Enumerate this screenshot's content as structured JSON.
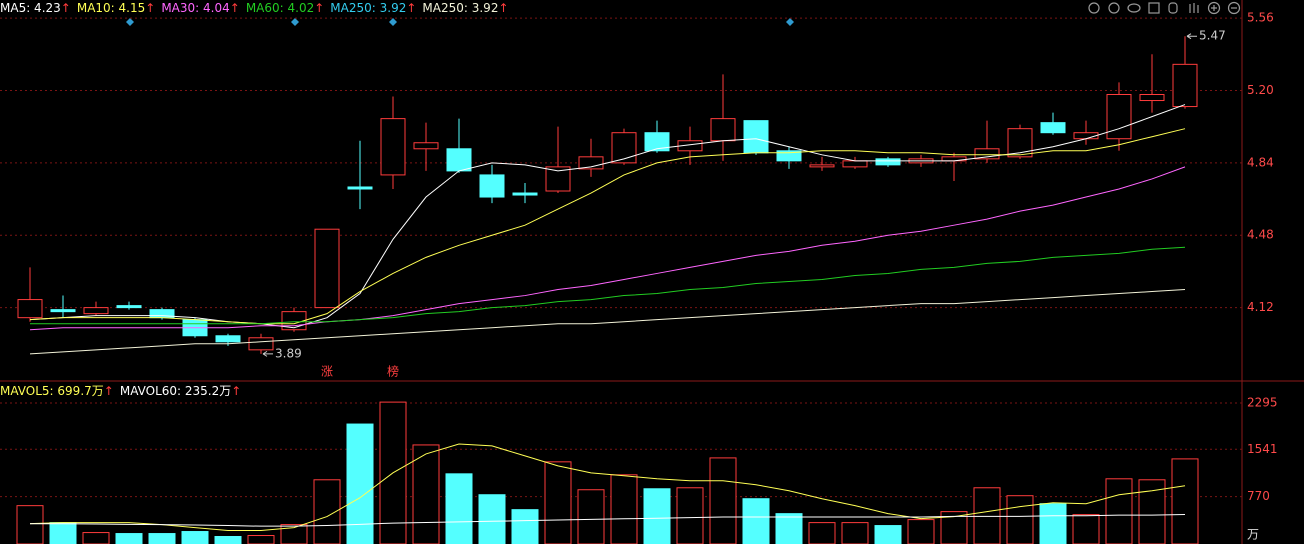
{
  "chart_data": [
    {
      "type": "candlestick",
      "open": [
        4.07,
        4.11,
        4.09,
        4.13,
        4.11,
        4.06,
        3.98,
        3.91,
        4.01,
        4.12,
        4.72,
        4.78,
        4.91,
        4.91,
        4.78,
        4.69,
        4.7,
        4.81,
        4.84,
        4.99,
        4.9,
        4.95,
        5.05,
        4.9,
        4.82,
        4.82,
        4.86,
        4.84,
        4.85,
        4.86,
        4.87,
        5.04,
        4.96,
        4.96,
        5.15,
        5.12
      ],
      "high": [
        4.32,
        4.18,
        4.15,
        4.15,
        4.12,
        4.07,
        3.99,
        3.99,
        4.12,
        4.51,
        4.95,
        5.17,
        5.04,
        5.06,
        4.83,
        4.74,
        5.02,
        4.96,
        5.01,
        5.05,
        5.02,
        5.28,
        5.05,
        4.92,
        4.87,
        4.87,
        4.87,
        4.88,
        4.89,
        5.05,
        5.03,
        5.09,
        5.05,
        5.24,
        5.38,
        5.47
      ],
      "low": [
        4.05,
        4.07,
        4.08,
        4.11,
        4.06,
        3.97,
        3.93,
        3.89,
        4.0,
        4.12,
        4.61,
        4.71,
        4.8,
        4.79,
        4.64,
        4.64,
        4.69,
        4.77,
        4.83,
        4.89,
        4.83,
        4.85,
        4.88,
        4.81,
        4.8,
        4.81,
        4.82,
        4.82,
        4.75,
        4.84,
        4.86,
        4.98,
        4.93,
        4.9,
        5.09,
        5.11
      ],
      "close": [
        4.16,
        4.1,
        4.12,
        4.12,
        4.07,
        3.98,
        3.95,
        3.97,
        4.1,
        4.51,
        4.71,
        5.06,
        4.94,
        4.8,
        4.67,
        4.68,
        4.82,
        4.87,
        4.99,
        4.9,
        4.95,
        5.06,
        4.89,
        4.85,
        4.83,
        4.85,
        4.83,
        4.86,
        4.87,
        4.91,
        5.01,
        4.99,
        4.99,
        5.18,
        5.18,
        5.33
      ],
      "up_color": "#ff3c3c",
      "down_color": "#54ffff",
      "trend_mark": "↑",
      "series": [
        {
          "name": "MA5: 4.23",
          "color": "#ffffff",
          "values": [
            4.06,
            4.07,
            4.08,
            4.08,
            4.08,
            4.07,
            4.05,
            4.04,
            4.02,
            4.07,
            4.19,
            4.46,
            4.67,
            4.8,
            4.84,
            4.83,
            4.8,
            4.82,
            4.86,
            4.91,
            4.93,
            4.95,
            4.96,
            4.92,
            4.88,
            4.85,
            4.85,
            4.85,
            4.85,
            4.87,
            4.89,
            4.92,
            4.96,
            5.01,
            5.07,
            5.13
          ]
        },
        {
          "name": "MA10: 4.15",
          "color": "#ffff55",
          "values": [
            4.06,
            4.07,
            4.07,
            4.07,
            4.07,
            4.06,
            4.05,
            4.04,
            4.04,
            4.09,
            4.2,
            4.29,
            4.37,
            4.43,
            4.48,
            4.53,
            4.61,
            4.69,
            4.78,
            4.84,
            4.87,
            4.88,
            4.89,
            4.89,
            4.9,
            4.9,
            4.89,
            4.89,
            4.88,
            4.88,
            4.88,
            4.9,
            4.9,
            4.93,
            4.97,
            5.01
          ]
        },
        {
          "name": "MA30: 4.04",
          "color": "#ff66ff",
          "values": [
            4.01,
            4.02,
            4.02,
            4.02,
            4.02,
            4.02,
            4.02,
            4.03,
            4.03,
            4.05,
            4.06,
            4.08,
            4.11,
            4.14,
            4.16,
            4.18,
            4.21,
            4.23,
            4.26,
            4.29,
            4.32,
            4.35,
            4.38,
            4.4,
            4.43,
            4.45,
            4.48,
            4.5,
            4.53,
            4.56,
            4.6,
            4.63,
            4.67,
            4.71,
            4.76,
            4.82
          ]
        },
        {
          "name": "MA60: 4.02",
          "color": "#22cc22",
          "values": [
            4.04,
            4.04,
            4.04,
            4.04,
            4.04,
            4.04,
            4.04,
            4.04,
            4.05,
            4.05,
            4.06,
            4.07,
            4.09,
            4.1,
            4.12,
            4.13,
            4.15,
            4.16,
            4.18,
            4.19,
            4.21,
            4.22,
            4.24,
            4.25,
            4.26,
            4.28,
            4.29,
            4.31,
            4.32,
            4.34,
            4.35,
            4.37,
            4.38,
            4.39,
            4.41,
            4.42
          ]
        },
        {
          "name": "MA250: 3.92",
          "color": "#f2f2d8",
          "values": [
            3.89,
            3.9,
            3.91,
            3.92,
            3.93,
            3.94,
            3.94,
            3.95,
            3.96,
            3.97,
            3.98,
            3.99,
            4.0,
            4.01,
            4.02,
            4.03,
            4.04,
            4.04,
            4.05,
            4.06,
            4.07,
            4.08,
            4.09,
            4.1,
            4.11,
            4.12,
            4.13,
            4.14,
            4.14,
            4.15,
            4.16,
            4.17,
            4.18,
            4.19,
            4.2,
            4.21
          ]
        }
      ],
      "legend_extra": {
        "name": "MA250: 3.92",
        "color": "#33ccee"
      },
      "events": [
        "涨",
        "榜"
      ],
      "ylim": [
        3.76,
        5.65
      ],
      "yticks": [
        5.56,
        {
          "value": 5.2,
          "label": "5.20"
        },
        4.84,
        4.48,
        4.12
      ],
      "grid": true
    },
    {
      "type": "bar",
      "values": [
        624,
        348,
        186,
        170,
        170,
        203,
        122,
        138,
        316,
        1045,
        1952,
        2309,
        1612,
        1142,
        802,
        559,
        1337,
        883,
        1126,
        899,
        915,
        1401,
        737,
        494,
        348,
        348,
        300,
        397,
        527,
        915,
        786,
        656,
        478,
        1061,
        1045,
        1385
      ],
      "trend_mark": "↑",
      "series": [
        {
          "name": "MAVOL5: 699.7万",
          "color": "#ffff55",
          "values": [
            332,
            348,
            348,
            348,
            316,
            267,
            219,
            219,
            267,
            446,
            753,
            1158,
            1466,
            1628,
            1596,
            1434,
            1272,
            1158,
            1110,
            1061,
            1029,
            1029,
            964,
            867,
            737,
            624,
            494,
            413,
            446,
            527,
            608,
            672,
            656,
            802,
            867,
            948
          ]
        },
        {
          "name": "MAVOL60: 235.2万",
          "color": "#ffffff",
          "values": [
            330,
            330,
            325,
            320,
            315,
            310,
            300,
            290,
            290,
            300,
            320,
            340,
            350,
            360,
            370,
            380,
            390,
            400,
            410,
            420,
            430,
            440,
            440,
            440,
            440,
            440,
            440,
            440,
            450,
            450,
            450,
            460,
            460,
            470,
            470,
            480
          ]
        }
      ],
      "unit": "万",
      "ylim": [
        0,
        2620
      ],
      "yticks": [
        2295,
        1541,
        770
      ],
      "grid": true
    }
  ]
}
